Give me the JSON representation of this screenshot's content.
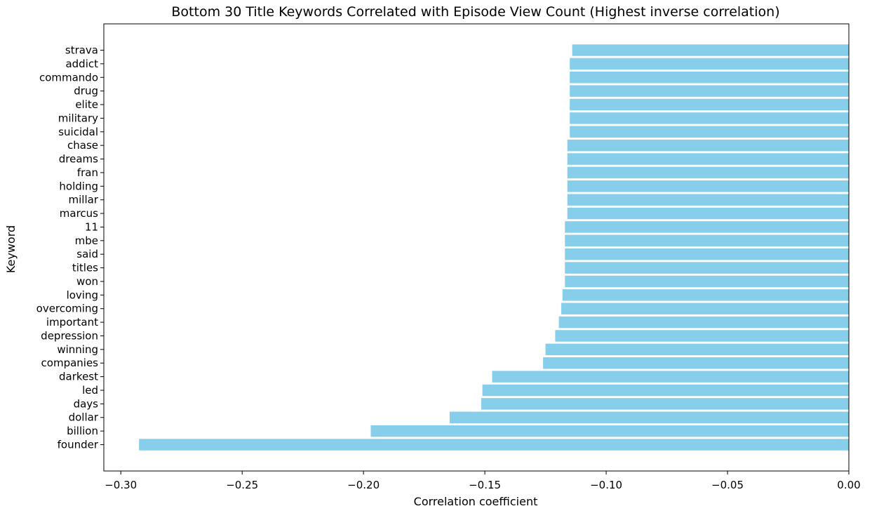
{
  "chart_data": {
    "type": "bar",
    "orientation": "horizontal",
    "title": "Bottom 30 Title Keywords Correlated with Episode View Count (Highest inverse correlation)",
    "xlabel": "Correlation coefficient",
    "ylabel": "Keyword",
    "xlim": [
      -0.307,
      0.0
    ],
    "xticks": [
      -0.3,
      -0.25,
      -0.2,
      -0.15,
      -0.1,
      -0.05,
      0.0
    ],
    "xtick_labels": [
      "−0.30",
      "−0.25",
      "−0.20",
      "−0.15",
      "−0.10",
      "−0.05",
      "0.00"
    ],
    "bar_color": "#87ceeb",
    "grid": false,
    "categories": [
      "strava",
      "addict",
      "commando",
      "drug",
      "elite",
      "military",
      "suicidal",
      "chase",
      "dreams",
      "fran",
      "holding",
      "millar",
      "marcus",
      "11",
      "mbe",
      "said",
      "titles",
      "won",
      "loving",
      "overcoming",
      "important",
      "depression",
      "winning",
      "companies",
      "darkest",
      "led",
      "days",
      "dollar",
      "billion",
      "founder"
    ],
    "values": [
      -0.114,
      -0.115,
      -0.115,
      -0.115,
      -0.115,
      -0.115,
      -0.115,
      -0.116,
      -0.116,
      -0.116,
      -0.116,
      -0.116,
      -0.116,
      -0.117,
      -0.117,
      -0.117,
      -0.117,
      -0.117,
      -0.118,
      -0.1185,
      -0.1195,
      -0.121,
      -0.125,
      -0.126,
      -0.147,
      -0.151,
      -0.1515,
      -0.1645,
      -0.197,
      -0.2925
    ]
  }
}
